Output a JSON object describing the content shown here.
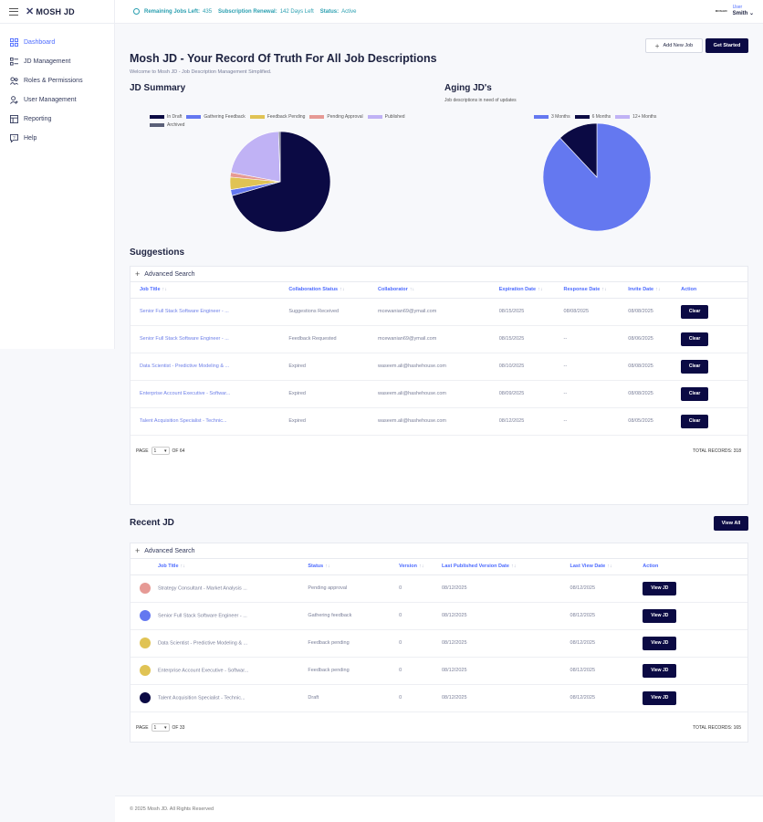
{
  "brand": {
    "logo_text": "MOSH JD",
    "logo_mark": "✕"
  },
  "sidebar": {
    "items": [
      {
        "label": "Dashboard",
        "icon": "dashboard-icon",
        "active": true
      },
      {
        "label": "JD Management",
        "icon": "list-icon",
        "active": false
      },
      {
        "label": "Roles & Permissions",
        "icon": "roles-icon",
        "active": false
      },
      {
        "label": "User Management",
        "icon": "user-icon",
        "active": false
      },
      {
        "label": "Reporting",
        "icon": "report-icon",
        "active": false
      },
      {
        "label": "Help",
        "icon": "help-icon",
        "active": false
      }
    ]
  },
  "topbar": {
    "jobs_left_label": "Remaining Jobs Left:",
    "jobs_left_value": "435",
    "renewal_label": "Subscription Renewal:",
    "renewal_value": "142 Days Left",
    "status_label": "Status:",
    "status_value": "Active",
    "user_role": "User",
    "user_name": "Smith",
    "avatar_text": "MOSHJD"
  },
  "header": {
    "title": "Mosh JD - Your Record Of Truth For All Job Descriptions",
    "subtitle": "Welcome to Mosh JD - Job Description Management Simplified.",
    "add_new_label": "Add New Job",
    "get_started_label": "Get Started"
  },
  "jd_summary": {
    "title": "JD Summary",
    "legend": [
      {
        "label": "In Draft",
        "color": "#0b0a44"
      },
      {
        "label": "Gathering Feedback",
        "color": "#6478f0"
      },
      {
        "label": "Feedback Pending",
        "color": "#e0c354"
      },
      {
        "label": "Pending Approval",
        "color": "#e69a95"
      },
      {
        "label": "Published",
        "color": "#c0b2f5"
      },
      {
        "label": "Archived",
        "color": "#5a5f78"
      }
    ]
  },
  "aging": {
    "title": "Aging JD's",
    "subtitle": "Job descriptions in need of updates",
    "legend": [
      {
        "label": "3 Months",
        "color": "#6478f0"
      },
      {
        "label": "6 Months",
        "color": "#0b0a44"
      },
      {
        "label": "12+ Months",
        "color": "#c0b2f5"
      }
    ]
  },
  "chart_data": [
    {
      "type": "pie",
      "title": "JD Summary",
      "labels": [
        "In Draft",
        "Gathering Feedback",
        "Feedback Pending",
        "Pending Approval",
        "Published",
        "Archived"
      ],
      "values": [
        70.5,
        2,
        4,
        1.5,
        21.5,
        0.5
      ],
      "colors": [
        "#0b0a44",
        "#6478f0",
        "#e0c354",
        "#e69a95",
        "#c0b2f5",
        "#5a5f78"
      ]
    },
    {
      "type": "pie",
      "title": "Aging JD's",
      "labels": [
        "3 Months",
        "6 Months",
        "12+ Months"
      ],
      "values": [
        88,
        12,
        0
      ],
      "colors": [
        "#6478f0",
        "#0b0a44",
        "#c0b2f5"
      ]
    }
  ],
  "suggestions": {
    "title": "Suggestions",
    "advanced_search": "Advanced Search",
    "columns": [
      "Job Title",
      "Collaboration Status",
      "Collaborator",
      "Expiration Date",
      "Response Date",
      "Invite Date",
      "Action"
    ],
    "rows": [
      {
        "title": "Senior Full Stack Software Engineer - ...",
        "status": "Suggestions Received",
        "collaborator": "mcewanian69@ymail.com",
        "expiration": "08/15/2025",
        "response": "08/08/2025",
        "invite": "08/08/2025",
        "action": "Clear"
      },
      {
        "title": "Senior Full Stack Software Engineer - ...",
        "status": "Feedback Requested",
        "collaborator": "mcewanian69@ymail.com",
        "expiration": "08/15/2025",
        "response": "--",
        "invite": "08/06/2025",
        "action": "Clear"
      },
      {
        "title": "Data Scientist - Predictive Modeling & ...",
        "status": "Expired",
        "collaborator": "waseem.ali@hashehouse.com",
        "expiration": "08/10/2025",
        "response": "--",
        "invite": "08/08/2025",
        "action": "Clear"
      },
      {
        "title": "Enterprise Account Executive - Softwar...",
        "status": "Expired",
        "collaborator": "waseem.ali@hashehouse.com",
        "expiration": "08/09/2025",
        "response": "--",
        "invite": "08/08/2025",
        "action": "Clear"
      },
      {
        "title": "Talent Acquisition Specialist - Technic...",
        "status": "Expired",
        "collaborator": "waseem.ali@hashehouse.com",
        "expiration": "08/12/2025",
        "response": "--",
        "invite": "08/05/2025",
        "action": "Clear"
      }
    ],
    "page_label": "PAGE",
    "page_value": "1",
    "of_label": "OF 64",
    "total_label": "TOTAL RECORDS: 318"
  },
  "recent": {
    "title": "Recent JD",
    "view_all": "View All",
    "advanced_search": "Advanced Search",
    "columns": [
      "Job Title",
      "Status",
      "Version",
      "Last Published Version Date",
      "Last View Date",
      "Action"
    ],
    "rows": [
      {
        "dot": "#e69a95",
        "title": "Strategy Consultant - Market Analysis ...",
        "status": "Pending approval",
        "version": "0",
        "published": "08/12/2025",
        "viewed": "08/12/2025",
        "action": "View JD"
      },
      {
        "dot": "#6478f0",
        "title": "Senior Full Stack Software Engineer - ...",
        "status": "Gathering feedback",
        "version": "0",
        "published": "08/12/2025",
        "viewed": "08/12/2025",
        "action": "View JD"
      },
      {
        "dot": "#e0c354",
        "title": "Data Scientist - Predictive Modeling & ...",
        "status": "Feedback pending",
        "version": "0",
        "published": "08/12/2025",
        "viewed": "08/12/2025",
        "action": "View JD"
      },
      {
        "dot": "#e0c354",
        "title": "Enterprise Account Executive - Softwar...",
        "status": "Feedback pending",
        "version": "0",
        "published": "08/12/2025",
        "viewed": "08/12/2025",
        "action": "View JD"
      },
      {
        "dot": "#0b0a44",
        "title": "Talent Acquisition Specialist - Technic...",
        "status": "Draft",
        "version": "0",
        "published": "08/12/2025",
        "viewed": "08/12/2025",
        "action": "View JD"
      }
    ],
    "page_label": "PAGE",
    "page_value": "1",
    "of_label": "OF 33",
    "total_label": "TOTAL RECORDS: 165"
  },
  "footer": {
    "text": "© 2025 Mosh JD. All Rights Reserved"
  }
}
